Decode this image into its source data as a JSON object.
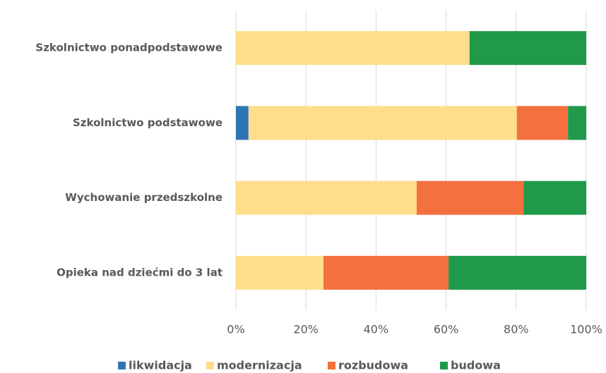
{
  "chart_data": {
    "type": "stacked_bar_horizontal",
    "categories": [
      "Szkolnictwo ponadpodstawowe",
      "Szkolnictwo podstawowe",
      "Wychowanie przedszkolne",
      "Opieka nad dziećmi do 3 lat"
    ],
    "series": [
      {
        "name": "likwidacja",
        "color": "#2e75b6",
        "values": [
          0,
          3.6,
          0,
          0
        ]
      },
      {
        "name": "modernizacja",
        "color": "#fedd8b",
        "values": [
          66.7,
          76.6,
          51.6,
          25.0
        ]
      },
      {
        "name": "rozbudowa",
        "color": "#f4703f",
        "values": [
          0,
          14.6,
          30.5,
          35.7
        ]
      },
      {
        "name": "budowa",
        "color": "#1e9a4a",
        "values": [
          33.3,
          5.2,
          17.9,
          39.3
        ]
      }
    ],
    "xlim": [
      0,
      100
    ],
    "xticks": [
      {
        "value": 0,
        "label": "0%"
      },
      {
        "value": 20,
        "label": "20%"
      },
      {
        "value": 40,
        "label": "40%"
      },
      {
        "value": 60,
        "label": "60%"
      },
      {
        "value": 80,
        "label": "80%"
      },
      {
        "value": 100,
        "label": "100%"
      }
    ],
    "grid": true,
    "legend": "bottom"
  }
}
